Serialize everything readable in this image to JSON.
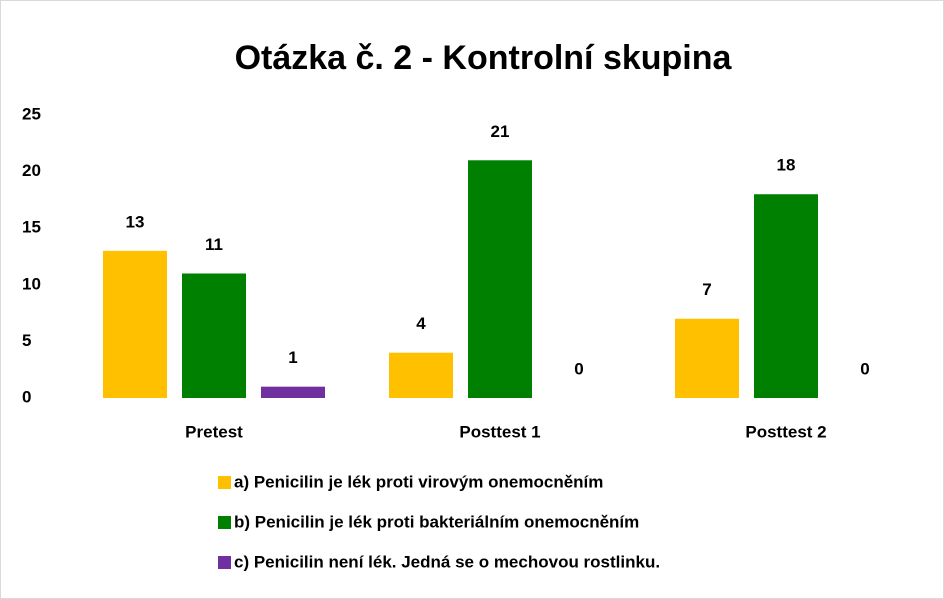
{
  "chart_data": {
    "type": "bar",
    "title": "Otázka č. 2 - Kontrolní skupina",
    "categories": [
      "Pretest",
      "Posttest 1",
      "Posttest 2"
    ],
    "series": [
      {
        "name": "a) Penicilin je lék proti virovým onemocněním",
        "color": "#FFC000",
        "values": [
          13,
          4,
          7
        ]
      },
      {
        "name": "b) Penicilin je lék proti bakteriálním onemocněním",
        "color": "#008000",
        "values": [
          11,
          21,
          18
        ]
      },
      {
        "name": "c) Penicilin není lék. Jedná se o mechovou rostlinku.",
        "color": "#7030A0",
        "values": [
          1,
          0,
          0
        ]
      }
    ],
    "ylim": [
      0,
      25
    ],
    "yticks": [
      0,
      5,
      10,
      15,
      20,
      25
    ],
    "grid": false,
    "legend": "bottom"
  }
}
